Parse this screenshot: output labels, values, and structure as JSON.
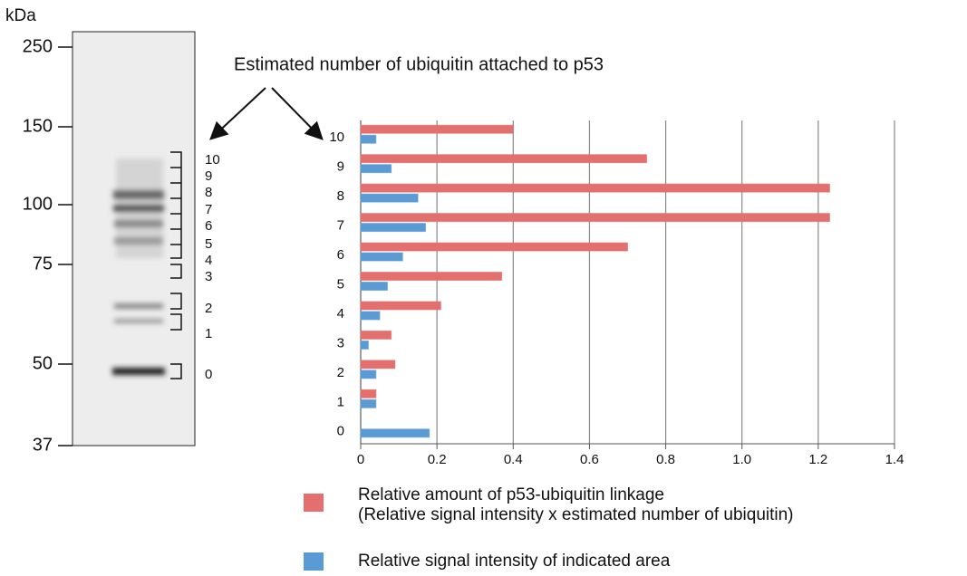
{
  "gel": {
    "unit": "kDa",
    "markers": [
      250,
      150,
      100,
      75,
      50,
      37
    ],
    "band_labels": [
      "10",
      "9",
      "8",
      "7",
      "6",
      "5",
      "4",
      "3",
      "2",
      "1",
      "0"
    ]
  },
  "annotation": "Estimated number of ubiquitin attached to p53",
  "chart_data": {
    "type": "hbar",
    "categories": [
      "0",
      "1",
      "2",
      "3",
      "4",
      "5",
      "6",
      "7",
      "8",
      "9",
      "10"
    ],
    "series": [
      {
        "name": "Relative amount of p53-ubiquitin linkage\n(Relative signal intensity x estimated number of ubiquitin)",
        "color": "#e36f6f",
        "values": [
          0,
          0.04,
          0.09,
          0.08,
          0.21,
          0.37,
          0.7,
          1.23,
          1.23,
          0.75,
          0.4
        ]
      },
      {
        "name": "Relative signal intensity of indicated area",
        "color": "#5b9bd5",
        "values": [
          0.18,
          0.04,
          0.04,
          0.02,
          0.05,
          0.07,
          0.11,
          0.17,
          0.15,
          0.08,
          0.04
        ]
      }
    ],
    "xlim": [
      0,
      1.4
    ],
    "xticks": [
      0,
      0.2,
      0.4,
      0.6,
      0.8,
      {
        "value": 1,
        "label": "1.0"
      },
      1.2,
      1.4
    ],
    "grid": true
  }
}
